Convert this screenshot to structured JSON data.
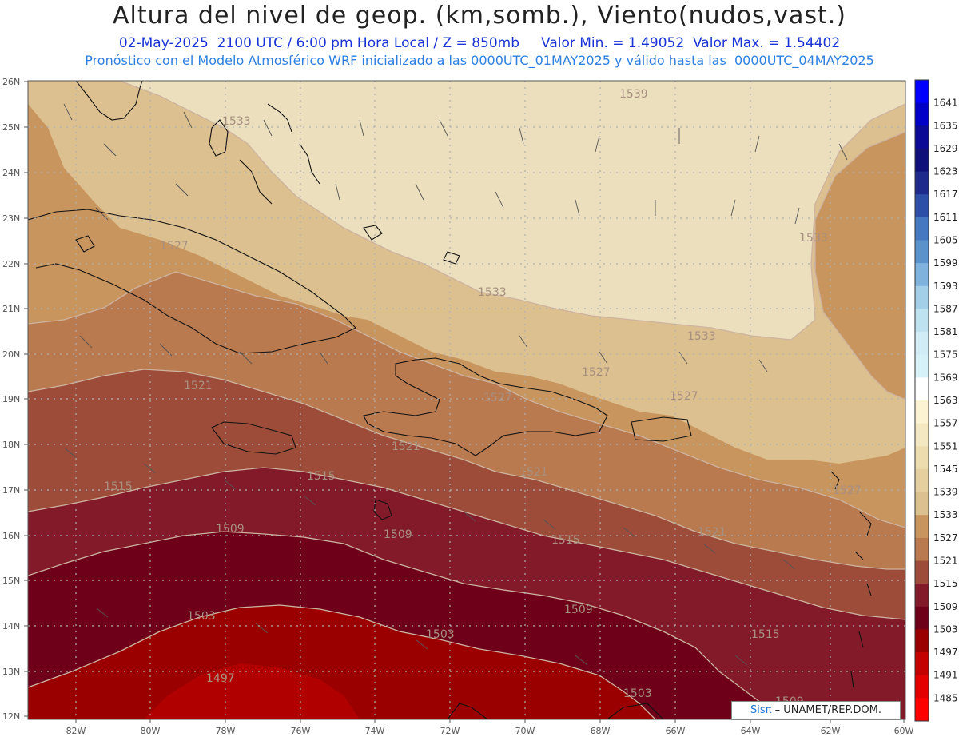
{
  "header": {
    "title": "Altura del nivel de geop. (km,somb.), Viento(nudos,vast.)",
    "subtitle_1": "02-May-2025  2100 UTC / 6:00 pm Hora Local / Z = 850mb     Valor Min. = 1.49052  Valor Max. = 1.54402",
    "subtitle_2": "Pronóstico con el Modelo Atmosférico WRF inicializado a las 0000UTC_01MAY2025 y válido hasta las  0000UTC_04MAY2025"
  },
  "map": {
    "lat_labels": [
      "26N",
      "25N",
      "24N",
      "23N",
      "22N",
      "21N",
      "20N",
      "19N",
      "18N",
      "17N",
      "16N",
      "15N",
      "14N",
      "13N",
      "12N"
    ],
    "lon_labels": [
      "82W",
      "80W",
      "78W",
      "76W",
      "74W",
      "72W",
      "70W",
      "68W",
      "66W",
      "64W",
      "62W",
      "60W"
    ],
    "contour_labels": [
      "1539",
      "1533",
      "1527",
      "1533",
      "1533",
      "1533",
      "1527",
      "1527",
      "1521",
      "1527",
      "1521",
      "1521",
      "1521",
      "1527",
      "1515",
      "1515",
      "1509",
      "1509",
      "1515",
      "1521",
      "1509",
      "1503",
      "1503",
      "1515",
      "1497",
      "1503",
      "1509"
    ],
    "fill_colors": {
      "c1497": "#b10000",
      "c1503": "#6e0019",
      "c1509": "#831a2a",
      "c1515": "#9e4c3a",
      "c1521": "#b97a50",
      "c1527": "#c9955e",
      "c1533": "#dcc08f",
      "c1539": "#ecdfbd"
    }
  },
  "legend": {
    "levels": [
      "1641",
      "1635",
      "1629",
      "1623",
      "1617",
      "1611",
      "1605",
      "1599",
      "1593",
      "1587",
      "1581",
      "1575",
      "1569",
      "1563",
      "1557",
      "1551",
      "1545",
      "1539",
      "1533",
      "1527",
      "1521",
      "1515",
      "1509",
      "1503",
      "1497",
      "1491",
      "1485"
    ],
    "colors": [
      "#0000ff",
      "#0000c8",
      "#0a0a96",
      "#10107a",
      "#1e2a8c",
      "#2d4fa8",
      "#4578c0",
      "#5b92cc",
      "#7fb3dd",
      "#a3cfe9",
      "#bfe2f1",
      "#d2ecf6",
      "#d6f1f8",
      "#ffffff",
      "#fbf3d2",
      "#f4e8c2",
      "#ecdcae",
      "#e5cf9f",
      "#dcc08f",
      "#c9955e",
      "#b97a50",
      "#9e4c3a",
      "#831a2a",
      "#6e0019",
      "#9a0000",
      "#c40000",
      "#e50000",
      "#ff0000"
    ]
  },
  "credit": {
    "sis": "Sisπ",
    "text": " – UNAMET/REP.DOM."
  }
}
